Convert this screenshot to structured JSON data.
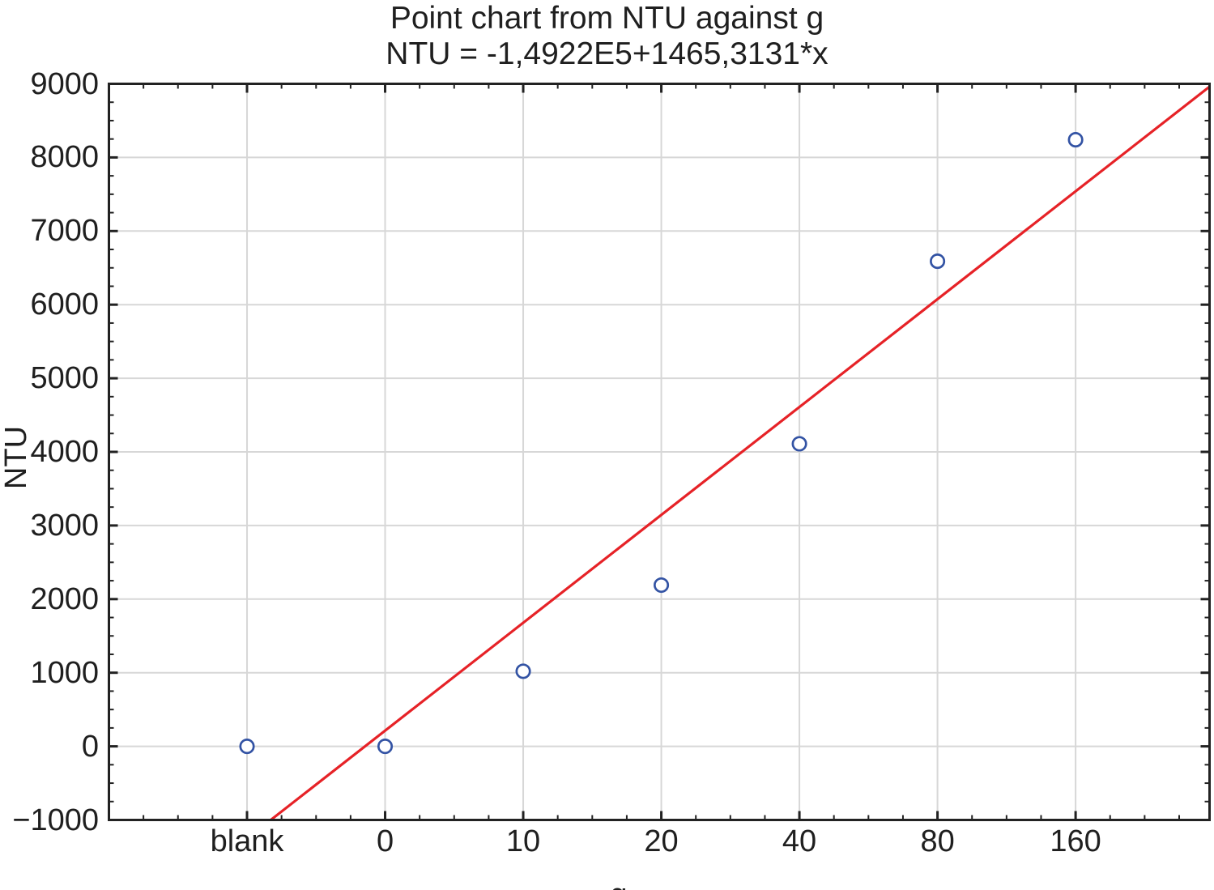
{
  "page": {
    "background": "#ffffff"
  },
  "chart_data": {
    "type": "scatter",
    "title": "Point chart from NTU against g",
    "subtitle": "NTU = -1,4922E5+1465,3131*x",
    "xlabel": "g",
    "ylabel": "NTU",
    "categories": [
      "blank",
      "0",
      "10",
      "20",
      "40",
      "80",
      "160"
    ],
    "values": [
      0,
      0,
      1020,
      2190,
      4110,
      6590,
      8240
    ],
    "ylim": [
      -1000,
      9000
    ],
    "y_major_step": 1000,
    "y_minor_step": 250,
    "x_minor_per_category": 4,
    "x_index_range": [
      0,
      7.97
    ],
    "y_tick_labels": [
      "9000",
      "8000",
      "7000",
      "6000",
      "5000",
      "4000",
      "3000",
      "2000",
      "1000",
      "0",
      "−1000"
    ],
    "grid": true,
    "legend_position": "none",
    "marker": "open-circle",
    "trendline": {
      "slope_per_category_index": 1465.3131,
      "intercept": -2717.3
    },
    "colors": {
      "point_stroke": "#3353a4",
      "trend_line": "#e62227",
      "grid_line": "#d7d7d7",
      "axis_frame": "#222222",
      "text": "#1f1f1f",
      "background": "#ffffff"
    }
  }
}
